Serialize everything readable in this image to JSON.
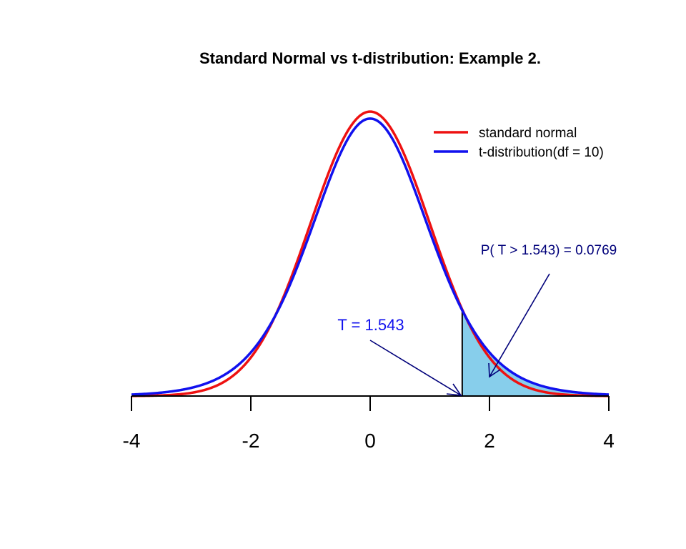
{
  "chart_data": {
    "type": "line",
    "title": "Standard Normal vs t-distribution: Example 2.",
    "xlabel": "",
    "ylabel": "",
    "xlim": [
      -4,
      4
    ],
    "ylim": [
      0,
      0.4
    ],
    "x_ticks": [
      -4,
      -2,
      0,
      2,
      4
    ],
    "x_tick_labels": [
      "-4",
      "-2",
      "0",
      "2",
      "4"
    ],
    "grid": false,
    "legend_position": "top-right",
    "series": [
      {
        "name": "standard normal",
        "kind": "normal",
        "color": "#ee1111",
        "peak": 0.3989
      },
      {
        "name": "t-distribution(df = 10)",
        "kind": "t",
        "df": 10,
        "color": "#1111ee",
        "peak": 0.3891
      }
    ],
    "shaded_region": {
      "from": 1.543,
      "to": 4,
      "fill": "#87ceeb",
      "under_series": "t-distribution(df = 10)"
    },
    "annotations": {
      "t_value": {
        "text": "T = 1.543",
        "at_x": 1.543,
        "color": "#1111ee"
      },
      "probability": {
        "text": "P( T > 1.543) = 0.0769",
        "points_to_x": 2.0,
        "color": "#00007a"
      }
    }
  }
}
